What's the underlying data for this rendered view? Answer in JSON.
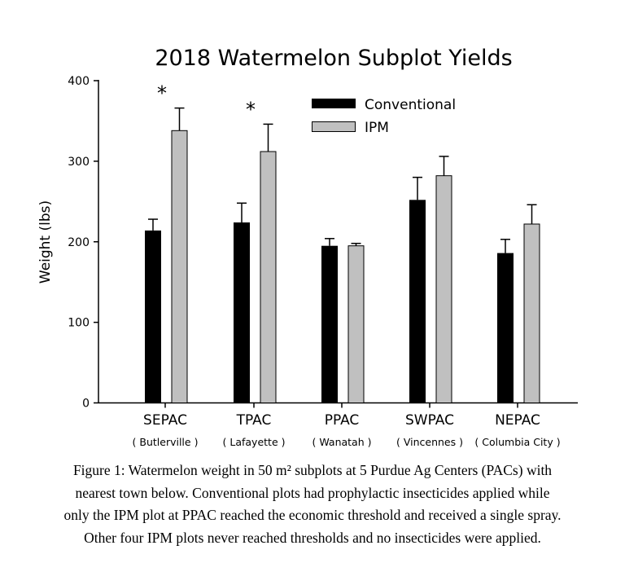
{
  "chart_data": {
    "type": "bar",
    "title": "2018 Watermelon Subplot Yields",
    "xlabel": "",
    "ylabel": "Weight (lbs)",
    "ylim": [
      0,
      400
    ],
    "yticks": [
      0,
      100,
      200,
      300,
      400
    ],
    "grid": false,
    "legend_position": "top-right",
    "categories": [
      "SEPAC",
      "TPAC",
      "PPAC",
      "SWPAC",
      "NEPAC"
    ],
    "category_sublabels": [
      "( Butlerville )",
      "( Lafayette )",
      "( Wanatah )",
      "( Vincennes )",
      "( Columbia City )"
    ],
    "series": [
      {
        "name": "Conventional",
        "color": "#000000",
        "values": [
          214,
          224,
          195,
          252,
          186
        ],
        "error_upper": [
          228,
          248,
          204,
          280,
          203
        ]
      },
      {
        "name": "IPM",
        "color": "#c0c0c0",
        "values": [
          338,
          312,
          195,
          282,
          222
        ],
        "error_upper": [
          366,
          346,
          198,
          306,
          246
        ]
      }
    ],
    "annotations": [
      {
        "text": "*",
        "category": "SEPAC"
      },
      {
        "text": "*",
        "category": "TPAC"
      }
    ]
  },
  "caption": {
    "lines": [
      "Figure 1: Watermelon weight in 50 m² subplots at 5 Purdue Ag Centers (PACs) with",
      "nearest town below. Conventional plots had prophylactic insecticides applied while",
      "only the IPM plot at PPAC reached the economic threshold and received a single spray.",
      "Other four IPM plots never reached thresholds and no insecticides were applied."
    ]
  }
}
